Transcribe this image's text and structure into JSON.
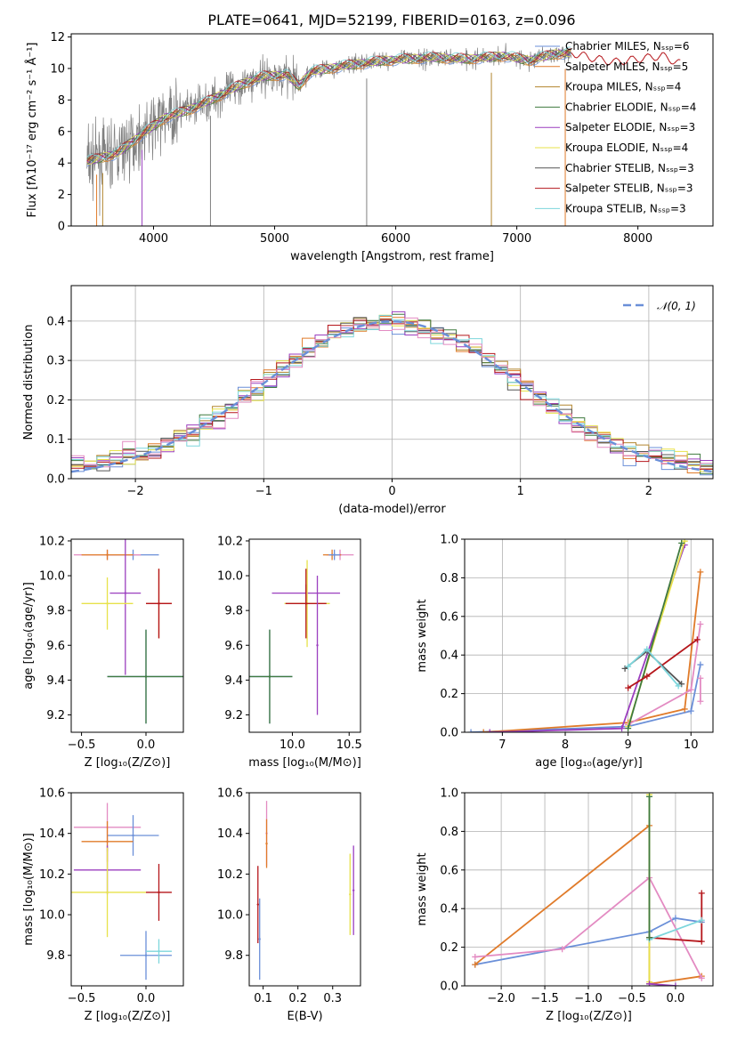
{
  "title": "PLATE=0641, MJD=52199, FIBERID=0163, z=0.096",
  "colors": {
    "c0": "#6a8fd8",
    "c1": "#e07b2a",
    "c2": "#b2852e",
    "c3": "#3f7a3f",
    "c4": "#9b3fbf",
    "c5": "#e7e24a",
    "c6": "#555555",
    "c7": "#b5161b",
    "c8": "#7dd6dc",
    "c9": "#e38bc2",
    "grid": "#b0b0b0",
    "spec": "#808080"
  },
  "chart_data": [
    {
      "type": "line",
      "name": "spectrum",
      "xlabel": "wavelength [Angstrom, rest frame]",
      "ylabel": "Flux [fλ10⁻¹⁷ erg cm⁻² s⁻¹ Å⁻¹]",
      "xlim": [
        3320,
        8620
      ],
      "ylim": [
        0,
        12.2
      ],
      "xticks": [
        4000,
        5000,
        6000,
        7000,
        8000
      ],
      "yticks": [
        0,
        2,
        4,
        6,
        8,
        10,
        12
      ],
      "grid": false,
      "legend_position": "top-right",
      "legend": [
        {
          "text": "Chabrier MILES, Nₛₛₚ=6",
          "color": "c0"
        },
        {
          "text": "Salpeter MILES, Nₛₛₚ=5",
          "color": "c1"
        },
        {
          "text": "Kroupa MILES, Nₛₛₚ=4",
          "color": "c2"
        },
        {
          "text": "Chabrier ELODIE, Nₛₛₚ=4",
          "color": "c3"
        },
        {
          "text": "Salpeter ELODIE, Nₛₛₚ=3",
          "color": "c4"
        },
        {
          "text": "Kroupa ELODIE, Nₛₛₚ=4",
          "color": "c5"
        },
        {
          "text": "Chabrier STELIB, Nₛₛₚ=3",
          "color": "c6"
        },
        {
          "text": "Salpeter STELIB, Nₛₛₚ=3",
          "color": "c7"
        },
        {
          "text": "Kroupa STELIB, Nₛₛₚ=3",
          "color": "c8"
        }
      ],
      "continuum": [
        [
          3450,
          4.1
        ],
        [
          3700,
          4.6
        ],
        [
          3900,
          5.8
        ],
        [
          4100,
          6.9
        ],
        [
          4300,
          7.4
        ],
        [
          4500,
          8.1
        ],
        [
          4700,
          8.9
        ],
        [
          4900,
          9.5
        ],
        [
          5100,
          9.6
        ],
        [
          5200,
          8.9
        ],
        [
          5300,
          9.8
        ],
        [
          5600,
          10.2
        ],
        [
          5900,
          10.5
        ],
        [
          6100,
          10.6
        ],
        [
          6300,
          10.7
        ],
        [
          6600,
          10.6
        ],
        [
          6900,
          10.8
        ],
        [
          7100,
          10.5
        ],
        [
          7300,
          10.9
        ],
        [
          7450,
          11.0
        ]
      ],
      "model_tail": [
        [
          7450,
          11.0
        ],
        [
          7600,
          10.7
        ],
        [
          7800,
          10.4
        ],
        [
          8000,
          10.6
        ],
        [
          8200,
          10.8
        ],
        [
          8350,
          10.3
        ]
      ],
      "absorption_lines": [
        3530,
        3580,
        3905,
        4470,
        5760,
        6790,
        7400
      ]
    },
    {
      "type": "line",
      "name": "residuals",
      "xlabel": "(data-model)/error",
      "ylabel": "Normed distribution",
      "xlim": [
        -2.5,
        2.5
      ],
      "ylim": [
        0,
        0.49
      ],
      "xticks": [
        -2,
        -1,
        0,
        1,
        2
      ],
      "yticks": [
        0.0,
        0.1,
        0.2,
        0.3,
        0.4
      ],
      "grid": true,
      "legend_position": "top-right",
      "legend": [
        {
          "text": "𝒩(0, 1)",
          "color": "c0"
        }
      ],
      "gaussian": {
        "mean": 0,
        "sigma": 1
      }
    },
    {
      "type": "scatter",
      "name": "age-vs-Z",
      "xlabel": "Z [log₁₀(Z/Z⊙)]",
      "ylabel": "age  [log₁₀(age/yr)]",
      "xlim": [
        -0.58,
        0.29
      ],
      "ylim": [
        9.1,
        10.21
      ],
      "xticks": [
        -0.5,
        0.0
      ],
      "yticks": [
        9.2,
        9.4,
        9.6,
        9.8,
        10.0,
        10.2
      ],
      "grid": false,
      "points": [
        {
          "x": -0.1,
          "y": 10.12,
          "xerr": 0.2,
          "yerr": 0.03,
          "color": "c0"
        },
        {
          "x": -0.3,
          "y": 10.12,
          "xerr": 0.26,
          "yerr": 0.03,
          "color": "c9"
        },
        {
          "x": -0.3,
          "y": 10.12,
          "xerr": 0.2,
          "yerr": 0.03,
          "color": "c1"
        },
        {
          "x": -0.16,
          "y": 9.9,
          "xerr": 0.12,
          "yerr": 0.47,
          "color": "c4"
        },
        {
          "x": -0.3,
          "y": 9.84,
          "xerr": 0.2,
          "yerr": 0.15,
          "color": "c5"
        },
        {
          "x": 0.1,
          "y": 9.84,
          "xerr": 0.1,
          "yerr": 0.2,
          "color": "c1"
        },
        {
          "x": 0.1,
          "y": 9.84,
          "xerr": 0.1,
          "yerr": 0.2,
          "color": "c7"
        },
        {
          "x": 0.0,
          "y": 9.42,
          "xerr": 0.3,
          "yerr": 0.27,
          "color": "c0"
        },
        {
          "x": 0.0,
          "y": 9.42,
          "xerr": 0.3,
          "yerr": 0.27,
          "color": "c3"
        },
        {
          "x": 0.3,
          "y": 9.6,
          "xerr": 0.0,
          "yerr": 0.43,
          "color": "c7"
        }
      ]
    },
    {
      "type": "scatter",
      "name": "age-vs-mass",
      "xlabel": "mass [log₁₀(M/M⊙)]",
      "xlim": [
        9.62,
        10.6
      ],
      "ylim": [
        9.1,
        10.21
      ],
      "xticks": [
        10.0,
        10.5
      ],
      "yticks": [
        9.2,
        9.4,
        9.6,
        9.8,
        10.0,
        10.2
      ],
      "grid": false,
      "points": [
        {
          "x": 10.42,
          "y": 10.12,
          "xerr": 0.12,
          "yerr": 0.03,
          "color": "c9"
        },
        {
          "x": 10.35,
          "y": 10.12,
          "xerr": 0.08,
          "yerr": 0.03,
          "color": "c1"
        },
        {
          "x": 10.37,
          "y": 10.12,
          "xerr": 0.05,
          "yerr": 0.03,
          "color": "c0"
        },
        {
          "x": 10.12,
          "y": 9.9,
          "xerr": 0.3,
          "yerr": 0.05,
          "color": "c4"
        },
        {
          "x": 10.13,
          "y": 9.84,
          "xerr": 0.2,
          "yerr": 0.25,
          "color": "c5"
        },
        {
          "x": 10.12,
          "y": 9.84,
          "xerr": 0.18,
          "yerr": 0.2,
          "color": "c7"
        },
        {
          "x": 9.8,
          "y": 9.42,
          "xerr": 0.2,
          "yerr": 0.27,
          "color": "c0"
        },
        {
          "x": 9.8,
          "y": 9.42,
          "xerr": 0.2,
          "yerr": 0.27,
          "color": "c3"
        },
        {
          "x": 10.22,
          "y": 9.6,
          "xerr": 0.0,
          "yerr": 0.4,
          "color": "c4"
        }
      ]
    },
    {
      "type": "line",
      "name": "mass-weight-vs-age",
      "xlabel": "age  [log₁₀(age/yr)]",
      "ylabel": "mass weight",
      "xlim": [
        6.4,
        10.35
      ],
      "ylim": [
        0,
        1.0
      ],
      "xticks": [
        7,
        8,
        9,
        10
      ],
      "yticks": [
        0.0,
        0.2,
        0.4,
        0.6,
        0.8,
        1.0
      ],
      "grid": true,
      "series": [
        {
          "color": "c0",
          "x": [
            6.5,
            9.0,
            10.0,
            10.15
          ],
          "y": [
            0.0,
            0.03,
            0.11,
            0.35
          ]
        },
        {
          "color": "c1",
          "x": [
            6.7,
            9.0,
            9.9,
            10.15
          ],
          "y": [
            0.0,
            0.05,
            0.12,
            0.83
          ]
        },
        {
          "color": "c9",
          "x": [
            9.0,
            10.0,
            10.15
          ],
          "y": [
            0.04,
            0.22,
            0.56
          ]
        },
        {
          "color": "c9",
          "x": [
            10.15,
            10.15
          ],
          "y": [
            0.16,
            0.28
          ]
        },
        {
          "color": "c4",
          "x": [
            6.8,
            8.9,
            9.9
          ],
          "y": [
            0.0,
            0.02,
            0.97
          ]
        },
        {
          "color": "c5",
          "x": [
            9.0,
            9.9
          ],
          "y": [
            0.03,
            0.99
          ]
        },
        {
          "color": "c3",
          "x": [
            9.0,
            9.85
          ],
          "y": [
            0.02,
            0.98
          ]
        },
        {
          "color": "c7",
          "x": [
            9.0,
            9.3,
            10.1
          ],
          "y": [
            0.23,
            0.29,
            0.48
          ]
        },
        {
          "color": "c6",
          "x": [
            8.95,
            9.3,
            9.85
          ],
          "y": [
            0.33,
            0.42,
            0.25
          ]
        },
        {
          "color": "c8",
          "x": [
            9.0,
            9.3,
            9.8
          ],
          "y": [
            0.34,
            0.43,
            0.24
          ]
        }
      ]
    },
    {
      "type": "scatter",
      "name": "mass-vs-Z",
      "xlabel": "Z [log₁₀(Z/Z⊙)]",
      "ylabel": "mass [log₁₀(M/M⊙)]",
      "xlim": [
        -0.58,
        0.29
      ],
      "ylim": [
        9.65,
        10.6
      ],
      "xticks": [
        -0.5,
        0.0
      ],
      "yticks": [
        9.8,
        10.0,
        10.2,
        10.4,
        10.6
      ],
      "grid": false,
      "points": [
        {
          "x": -0.3,
          "y": 10.43,
          "xerr": 0.26,
          "yerr": 0.12,
          "color": "c9"
        },
        {
          "x": -0.1,
          "y": 10.39,
          "xerr": 0.2,
          "yerr": 0.1,
          "color": "c0"
        },
        {
          "x": -0.3,
          "y": 10.36,
          "xerr": 0.2,
          "yerr": 0.1,
          "color": "c1"
        },
        {
          "x": -0.3,
          "y": 10.22,
          "xerr": 0.26,
          "yerr": 0.12,
          "color": "c4"
        },
        {
          "x": -0.3,
          "y": 10.11,
          "xerr": 0.3,
          "yerr": 0.22,
          "color": "c5"
        },
        {
          "x": 0.1,
          "y": 10.11,
          "xerr": 0.1,
          "yerr": 0.14,
          "color": "c7"
        },
        {
          "x": 0.0,
          "y": 9.8,
          "xerr": 0.2,
          "yerr": 0.12,
          "color": "c0"
        },
        {
          "x": 0.1,
          "y": 9.82,
          "xerr": 0.1,
          "yerr": 0.06,
          "color": "c8"
        }
      ]
    },
    {
      "type": "scatter",
      "name": "mass-vs-EBV",
      "xlabel": "E(B-V)",
      "xlim": [
        0.06,
        0.38
      ],
      "ylim": [
        9.65,
        10.6
      ],
      "xticks": [
        0.1,
        0.2,
        0.3
      ],
      "yticks": [
        9.8,
        10.0,
        10.2,
        10.4,
        10.6
      ],
      "grid": false,
      "points": [
        {
          "x": 0.085,
          "y": 10.05,
          "xerr": 0.0,
          "yerr": 0.19,
          "color": "c7"
        },
        {
          "x": 0.09,
          "y": 9.88,
          "xerr": 0.0,
          "yerr": 0.2,
          "color": "c0"
        },
        {
          "x": 0.11,
          "y": 10.4,
          "xerr": 0.0,
          "yerr": 0.16,
          "color": "c9"
        },
        {
          "x": 0.11,
          "y": 10.35,
          "xerr": 0.0,
          "yerr": 0.12,
          "color": "c1"
        },
        {
          "x": 0.36,
          "y": 10.12,
          "xerr": 0.0,
          "yerr": 0.22,
          "color": "c4"
        },
        {
          "x": 0.35,
          "y": 10.1,
          "xerr": 0.0,
          "yerr": 0.2,
          "color": "c5"
        }
      ]
    },
    {
      "type": "line",
      "name": "mass-weight-vs-Z",
      "xlabel": "Z [log₁₀(Z/Z⊙)]",
      "ylabel": "mass weight",
      "xlim": [
        -2.42,
        0.43
      ],
      "ylim": [
        0,
        1.0
      ],
      "xticks": [
        -2.0,
        -1.5,
        -1.0,
        -0.5,
        0.0
      ],
      "yticks": [
        0.0,
        0.2,
        0.4,
        0.6,
        0.8,
        1.0
      ],
      "grid": true,
      "series": [
        {
          "color": "c0",
          "x": [
            -2.3,
            -0.3,
            0.0,
            0.3
          ],
          "y": [
            0.11,
            0.28,
            0.35,
            0.33
          ]
        },
        {
          "color": "c1",
          "x": [
            -2.3,
            -0.3,
            -0.3,
            0.3
          ],
          "y": [
            0.11,
            0.83,
            0.01,
            0.05
          ]
        },
        {
          "color": "c9",
          "x": [
            -2.3,
            -1.3,
            -0.3,
            0.3
          ],
          "y": [
            0.15,
            0.19,
            0.56,
            0.04
          ]
        },
        {
          "color": "c5",
          "x": [
            -0.3,
            -0.3
          ],
          "y": [
            0.02,
            0.99
          ]
        },
        {
          "color": "c7",
          "x": [
            -0.3,
            0.3,
            0.3
          ],
          "y": [
            0.25,
            0.23,
            0.48
          ]
        },
        {
          "color": "c8",
          "x": [
            -0.3,
            0.3
          ],
          "y": [
            0.24,
            0.34
          ]
        },
        {
          "color": "c3",
          "x": [
            -0.3,
            -0.3
          ],
          "y": [
            0.25,
            0.98
          ]
        },
        {
          "color": "c4",
          "x": [
            -0.3,
            0.0
          ],
          "y": [
            0.01,
            0.0
          ]
        }
      ]
    }
  ]
}
